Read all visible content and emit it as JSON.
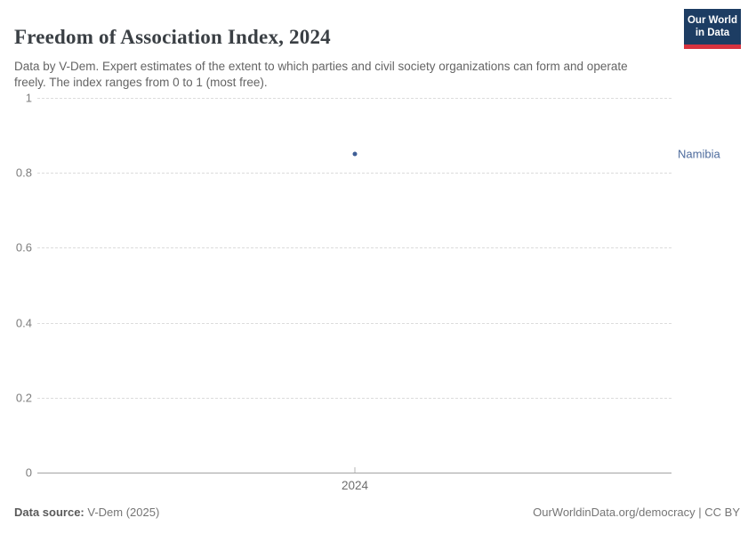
{
  "header": {
    "title": "Freedom of Association Index, 2024",
    "subtitle": "Data by V-Dem. Expert estimates of the extent to which parties and civil society organizations can form and operate freely. The index ranges from 0 to 1 (most free).",
    "logo": {
      "line1": "Our World",
      "line2": "in Data"
    }
  },
  "chart_data": {
    "type": "scatter",
    "title": "Freedom of Association Index, 2024",
    "categories": [
      2024
    ],
    "x_tick_labels": [
      "2024"
    ],
    "series": [
      {
        "name": "Namibia",
        "x": [
          2024
        ],
        "values": [
          0.85
        ],
        "color": "#3f5e96",
        "label_color": "#4c6a9c"
      }
    ],
    "xlabel": "",
    "ylabel": "",
    "ylim": [
      0,
      1
    ],
    "y_ticks": [
      0,
      0.2,
      0.4,
      0.6,
      0.8,
      1
    ],
    "grid": "horizontal-dashed",
    "legend_position": "entity-label-right"
  },
  "footer": {
    "source_label": "Data source:",
    "source_value": "V-Dem (2025)",
    "credit": "OurWorldinData.org/democracy | CC BY"
  },
  "colors": {
    "logo_bg": "#1d3d63",
    "logo_bar": "#d7333f",
    "grid": "#dcdcdc",
    "axis": "#a3a3a3",
    "tick_text": "#7d7d7d"
  }
}
